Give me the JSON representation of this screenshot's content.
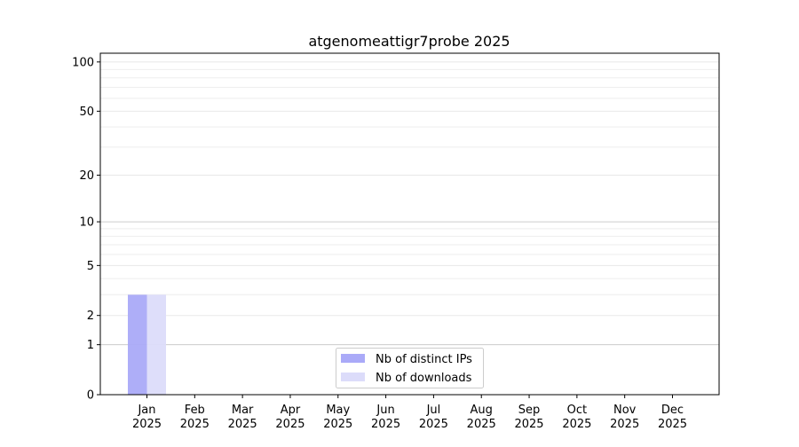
{
  "chart_data": {
    "type": "bar",
    "title": "atgenomeattigr7probe 2025",
    "xlabel": "",
    "ylabel": "",
    "yscale": "symlog",
    "ylim": [
      0,
      113
    ],
    "yticks": [
      0,
      1,
      2,
      5,
      10,
      20,
      50,
      100
    ],
    "ytick_labels": [
      "0",
      "1",
      "2",
      "5",
      "10",
      "20",
      "50",
      "100"
    ],
    "categories": [
      "Jan\n2025",
      "Feb\n2025",
      "Mar\n2025",
      "Apr\n2025",
      "May\n2025",
      "Jun\n2025",
      "Jul\n2025",
      "Aug\n2025",
      "Sep\n2025",
      "Oct\n2025",
      "Nov\n2025",
      "Dec\n2025"
    ],
    "series": [
      {
        "name": "Nb of distinct IPs",
        "color": "#aaaaf8",
        "values": [
          3,
          0,
          0,
          0,
          0,
          0,
          0,
          0,
          0,
          0,
          0,
          0
        ]
      },
      {
        "name": "Nb of downloads",
        "color": "#dcdcfa",
        "values": [
          3,
          0,
          0,
          0,
          0,
          0,
          0,
          0,
          0,
          0,
          0,
          0
        ]
      }
    ],
    "grid": true,
    "legend_position": "bottom-center"
  }
}
